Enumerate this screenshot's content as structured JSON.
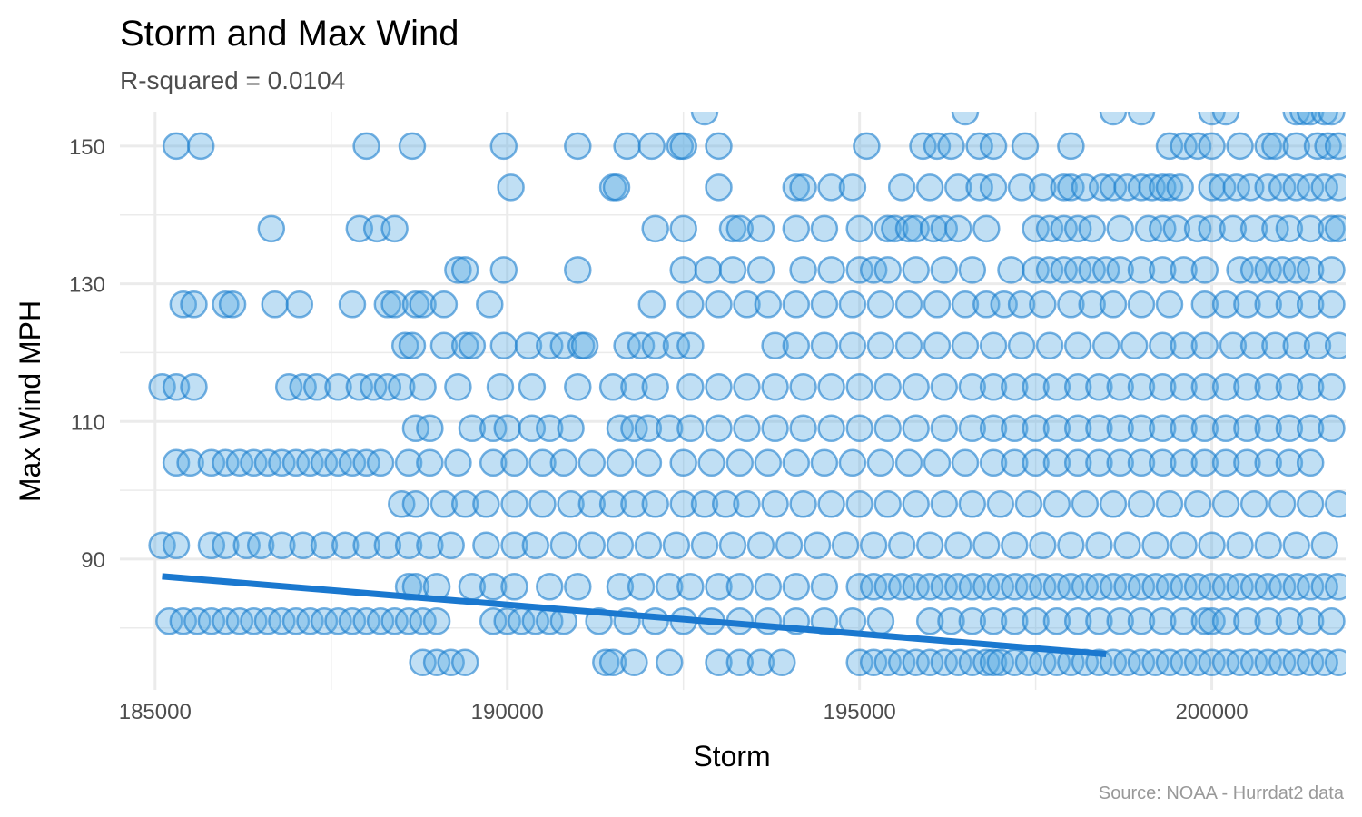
{
  "chart_data": {
    "type": "scatter",
    "title": "Storm and Max Wind",
    "subtitle": "R-squared =  0.0104",
    "caption": "Source: NOAA - Hurrdat2 data",
    "xlabel": "Storm",
    "ylabel": "Max Wind MPH",
    "xlim": [
      184500,
      201900
    ],
    "ylim": [
      71,
      155
    ],
    "x_ticks": [
      185000,
      190000,
      195000,
      200000
    ],
    "x_tick_labels": [
      "185000",
      "190000",
      "195000",
      "200000"
    ],
    "y_ticks": [
      90,
      110,
      130,
      150
    ],
    "y_tick_labels": [
      "90",
      "110",
      "130",
      "150"
    ],
    "grid": true,
    "colors": {
      "point_fill": "#5aaae1",
      "point_stroke": "#197dcd",
      "trend": "#1a78cf"
    },
    "trend_line": {
      "x": [
        185100,
        198500
      ],
      "y": [
        87.5,
        76.2
      ]
    },
    "rows": [
      {
        "y": 155,
        "x": [
          192800,
          196500,
          198600,
          199000,
          200000,
          200200,
          201200,
          201300,
          201400,
          201600,
          201700
        ]
      },
      {
        "y": 150,
        "x": [
          185300,
          185650,
          188000,
          188650,
          189950,
          191000,
          191700,
          192050,
          192450,
          192500,
          193000,
          195100,
          195900,
          196100,
          196300,
          196700,
          196900,
          197350,
          198000,
          199400,
          199600,
          199800,
          200000,
          200400,
          200800,
          200900,
          201200,
          201500,
          201650,
          201800
        ]
      },
      {
        "y": 144,
        "x": [
          190050,
          191500,
          191550,
          193000,
          194100,
          194200,
          194600,
          194900,
          195600,
          196000,
          196400,
          196700,
          196900,
          197300,
          197600,
          197900,
          198000,
          198200,
          198450,
          198600,
          198800,
          199000,
          199150,
          199300,
          199400,
          199550,
          200000,
          200150,
          200350,
          200550,
          200800,
          201000,
          201200,
          201400,
          201600,
          201800
        ]
      },
      {
        "y": 138,
        "x": [
          186650,
          187900,
          188150,
          188400,
          192100,
          192500,
          193200,
          193300,
          193600,
          194100,
          194500,
          195000,
          195400,
          195500,
          195700,
          195800,
          196050,
          196200,
          196400,
          196800,
          197500,
          197700,
          197900,
          198100,
          198300,
          198700,
          199100,
          199300,
          199500,
          199800,
          200000,
          200300,
          200600,
          200900,
          201100,
          201400,
          201700,
          201800
        ]
      },
      {
        "y": 132,
        "x": [
          189300,
          189400,
          189950,
          191000,
          192500,
          192850,
          193200,
          193600,
          194200,
          194600,
          195000,
          195200,
          195400,
          195800,
          196200,
          196600,
          197150,
          197500,
          197700,
          197900,
          198100,
          198300,
          198500,
          198700,
          199000,
          199300,
          199600,
          199900,
          200400,
          200600,
          200800,
          201000,
          201200,
          201400,
          201700
        ]
      },
      {
        "y": 127,
        "x": [
          185400,
          185550,
          186000,
          186100,
          186700,
          187050,
          187800,
          188300,
          188400,
          188700,
          188800,
          189100,
          189750,
          192050,
          192600,
          193000,
          193400,
          193700,
          194100,
          194500,
          194900,
          195300,
          195700,
          196100,
          196500,
          196800,
          197050,
          197300,
          197600,
          198000,
          198300,
          198600,
          199000,
          199400,
          199900,
          200200,
          200500,
          200800,
          201100,
          201400,
          201700
        ]
      },
      {
        "y": 121,
        "x": [
          188550,
          188650,
          189100,
          189400,
          189500,
          189950,
          190300,
          190600,
          190800,
          191050,
          191100,
          191700,
          191900,
          192100,
          192400,
          192600,
          193800,
          194100,
          194500,
          194900,
          195300,
          195700,
          196100,
          196500,
          196900,
          197300,
          197700,
          198100,
          198500,
          198900,
          199300,
          199600,
          199900,
          200300,
          200600,
          200900,
          201200,
          201500,
          201800
        ]
      },
      {
        "y": 115,
        "x": [
          185100,
          185300,
          185550,
          186900,
          187100,
          187300,
          187600,
          187900,
          188100,
          188300,
          188500,
          188800,
          189300,
          189900,
          190350,
          191000,
          191500,
          191800,
          192100,
          192600,
          193000,
          193400,
          193800,
          194200,
          194600,
          195000,
          195400,
          195800,
          196200,
          196600,
          196900,
          197200,
          197500,
          197800,
          198100,
          198400,
          198700,
          199000,
          199300,
          199600,
          199900,
          200200,
          200500,
          200800,
          201100,
          201400,
          201700
        ]
      },
      {
        "y": 109,
        "x": [
          188700,
          188900,
          189500,
          189800,
          190000,
          190350,
          190600,
          190900,
          191600,
          191800,
          192000,
          192300,
          192600,
          193000,
          193400,
          193800,
          194200,
          194600,
          195000,
          195400,
          195800,
          196200,
          196600,
          196900,
          197200,
          197500,
          197800,
          198100,
          198400,
          198700,
          199000,
          199300,
          199600,
          199900,
          200200,
          200500,
          200800,
          201100,
          201400,
          201700
        ]
      },
      {
        "y": 104,
        "x": [
          185300,
          185500,
          185800,
          186000,
          186200,
          186400,
          186600,
          186800,
          187000,
          187200,
          187400,
          187600,
          187800,
          188000,
          188200,
          188600,
          188900,
          189300,
          189800,
          190100,
          190500,
          190800,
          191200,
          191600,
          192000,
          192500,
          192900,
          193300,
          193700,
          194100,
          194500,
          194900,
          195300,
          195700,
          196100,
          196500,
          196900,
          197200,
          197500,
          197800,
          198100,
          198400,
          198700,
          199000,
          199300,
          199600,
          199900,
          200200,
          200500,
          200800,
          201100,
          201400
        ]
      },
      {
        "y": 98,
        "x": [
          188500,
          188700,
          189100,
          189400,
          189700,
          190100,
          190500,
          190900,
          191200,
          191500,
          191800,
          192100,
          192500,
          192800,
          193100,
          193400,
          193800,
          194200,
          194600,
          195000,
          195400,
          195800,
          196200,
          196600,
          197000,
          197400,
          197800,
          198200,
          198600,
          199000,
          199400,
          199800,
          200200,
          200600,
          201000,
          201400,
          201800
        ]
      },
      {
        "y": 92,
        "x": [
          185100,
          185300,
          185800,
          186000,
          186300,
          186500,
          186800,
          187100,
          187400,
          187700,
          188000,
          188300,
          188600,
          188900,
          189200,
          189700,
          190100,
          190400,
          190800,
          191200,
          191600,
          192000,
          192400,
          192800,
          193200,
          193600,
          194000,
          194400,
          194800,
          195200,
          195600,
          196000,
          196400,
          196800,
          197200,
          197600,
          198000,
          198400,
          198800,
          199200,
          199600,
          200000,
          200400,
          200800,
          201200,
          201600
        ]
      },
      {
        "y": 86,
        "x": [
          188600,
          188700,
          189000,
          189500,
          189800,
          190100,
          190600,
          191000,
          191600,
          191900,
          192300,
          192600,
          193000,
          193300,
          193700,
          194100,
          194500,
          195000,
          195200,
          195400,
          195600,
          195800,
          196000,
          196200,
          196400,
          196600,
          196800,
          197000,
          197200,
          197400,
          197600,
          197800,
          198000,
          198200,
          198400,
          198600,
          198800,
          199000,
          199200,
          199400,
          199600,
          199800,
          200000,
          200200,
          200400,
          200600,
          200800,
          201000,
          201200,
          201400,
          201600,
          201800
        ]
      },
      {
        "y": 81,
        "x": [
          185200,
          185400,
          185600,
          185800,
          186000,
          186200,
          186400,
          186600,
          186800,
          187000,
          187200,
          187400,
          187600,
          187800,
          188000,
          188200,
          188400,
          188600,
          188800,
          189000,
          189800,
          190000,
          190200,
          190400,
          190600,
          190800,
          191300,
          191700,
          192100,
          192500,
          192900,
          193300,
          193700,
          194100,
          194500,
          194900,
          195300,
          196000,
          196300,
          196600,
          196900,
          197200,
          197500,
          197800,
          198100,
          198400,
          198700,
          199000,
          199300,
          199600,
          199900,
          200000,
          200200,
          200500,
          200800,
          201100,
          201400,
          201700
        ]
      },
      {
        "y": 75,
        "x": [
          188800,
          189000,
          189200,
          189400,
          191400,
          191500,
          191800,
          192300,
          193000,
          193300,
          193600,
          193900,
          195000,
          195200,
          195400,
          195600,
          195800,
          196000,
          196200,
          196400,
          196600,
          196800,
          196900,
          197000,
          197200,
          197400,
          197600,
          197800,
          198000,
          198200,
          198400,
          198600,
          198800,
          199000,
          199200,
          199400,
          199600,
          199800,
          200000,
          200200,
          200400,
          200600,
          200800,
          201000,
          201200,
          201400,
          201600,
          201800
        ]
      }
    ]
  }
}
